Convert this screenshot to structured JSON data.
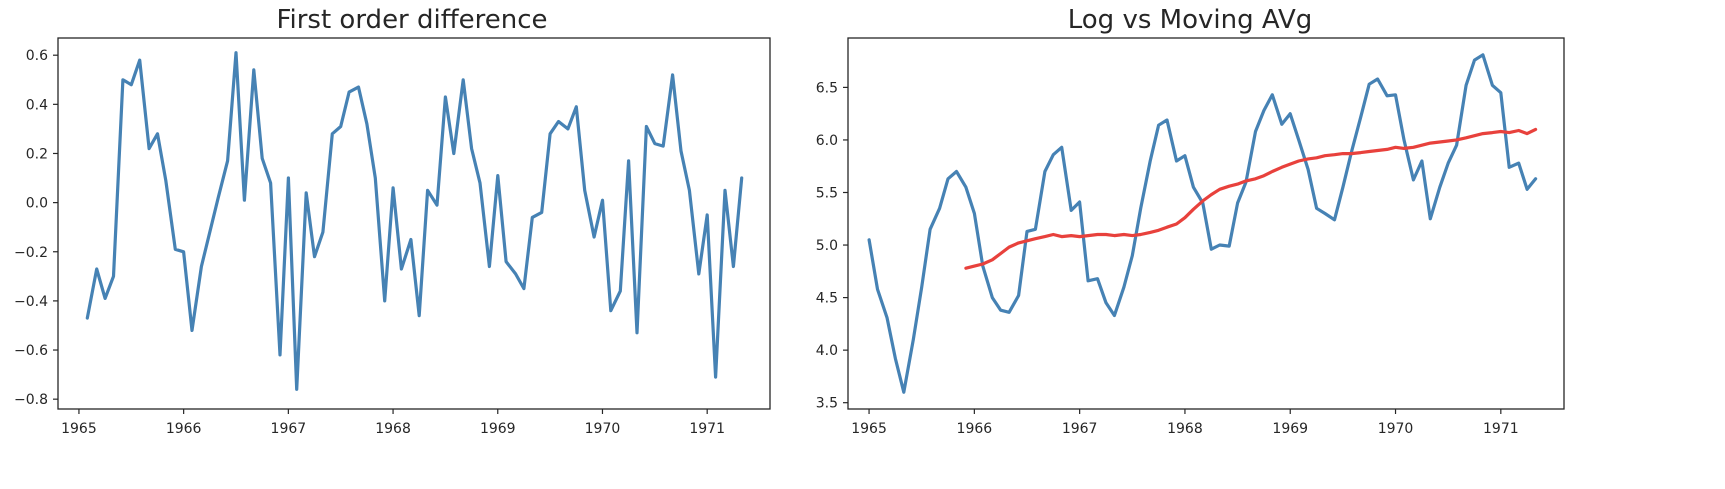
{
  "colors": {
    "series_blue": "#4682b4",
    "series_red": "#e8413c",
    "axis": "#262626"
  },
  "chart_data": [
    {
      "type": "line",
      "title": "First order difference",
      "xlim": [
        1964.8,
        1971.6
      ],
      "ylim": [
        -0.84,
        0.67
      ],
      "xticks": [
        1965,
        1966,
        1967,
        1968,
        1969,
        1970,
        1971
      ],
      "xtick_labels": [
        "1965",
        "1966",
        "1967",
        "1968",
        "1969",
        "1970",
        "1971"
      ],
      "yticks": [
        0.6,
        0.4,
        0.2,
        0.0,
        -0.2,
        -0.4,
        -0.6,
        -0.8
      ],
      "ytick_labels": [
        "0.6",
        "0.4",
        "0.2",
        "0.0",
        "−0.2",
        "−0.4",
        "−0.6",
        "−0.8"
      ],
      "grid": false,
      "series": [
        {
          "color": "#4682b4",
          "x": [
            1965.08,
            1965.17,
            1965.25,
            1965.33,
            1965.42,
            1965.5,
            1965.58,
            1965.67,
            1965.75,
            1965.83,
            1965.92,
            1966.0,
            1966.08,
            1966.17,
            1966.25,
            1966.33,
            1966.42,
            1966.5,
            1966.58,
            1966.67,
            1966.75,
            1966.83,
            1966.92,
            1967.0,
            1967.08,
            1967.17,
            1967.25,
            1967.33,
            1967.42,
            1967.5,
            1967.58,
            1967.67,
            1967.75,
            1967.83,
            1967.92,
            1968.0,
            1968.08,
            1968.17,
            1968.25,
            1968.33,
            1968.42,
            1968.5,
            1968.58,
            1968.67,
            1968.75,
            1968.83,
            1968.92,
            1969.0,
            1969.08,
            1969.17,
            1969.25,
            1969.33,
            1969.42,
            1969.5,
            1969.58,
            1969.67,
            1969.75,
            1969.83,
            1969.92,
            1970.0,
            1970.08,
            1970.17,
            1970.25,
            1970.33,
            1970.42,
            1970.5,
            1970.58,
            1970.67,
            1970.75,
            1970.83,
            1970.92,
            1971.0,
            1971.08,
            1971.17,
            1971.25,
            1971.33
          ],
          "y": [
            -0.47,
            -0.27,
            -0.39,
            -0.3,
            0.5,
            0.48,
            0.58,
            0.22,
            0.28,
            0.09,
            -0.19,
            -0.2,
            -0.52,
            -0.26,
            -0.12,
            0.02,
            0.17,
            0.61,
            0.01,
            0.54,
            0.18,
            0.08,
            -0.62,
            0.1,
            -0.76,
            0.04,
            -0.22,
            -0.12,
            0.28,
            0.31,
            0.45,
            0.47,
            0.32,
            0.1,
            -0.4,
            0.06,
            -0.27,
            -0.15,
            -0.46,
            0.05,
            -0.01,
            0.43,
            0.2,
            0.5,
            0.22,
            0.08,
            -0.26,
            0.11,
            -0.24,
            -0.29,
            -0.35,
            -0.06,
            -0.04,
            0.28,
            0.33,
            0.3,
            0.39,
            0.05,
            -0.14,
            0.01,
            -0.44,
            -0.36,
            0.17,
            -0.53,
            0.31,
            0.24,
            0.23,
            0.52,
            0.21,
            0.05,
            -0.29,
            -0.05,
            -0.71,
            0.05,
            -0.26,
            0.1
          ]
        }
      ]
    },
    {
      "type": "line",
      "title": "Log vs Moving AVg",
      "xlim": [
        1964.8,
        1971.6
      ],
      "ylim": [
        3.44,
        6.97
      ],
      "xticks": [
        1965,
        1966,
        1967,
        1968,
        1969,
        1970,
        1971
      ],
      "xtick_labels": [
        "1965",
        "1966",
        "1967",
        "1968",
        "1969",
        "1970",
        "1971"
      ],
      "yticks": [
        6.5,
        6.0,
        5.5,
        5.0,
        4.5,
        4.0,
        3.5
      ],
      "ytick_labels": [
        "6.5",
        "6.0",
        "5.5",
        "5.0",
        "4.5",
        "4.0",
        "3.5"
      ],
      "grid": false,
      "series": [
        {
          "color": "#4682b4",
          "x": [
            1965.0,
            1965.08,
            1965.17,
            1965.25,
            1965.33,
            1965.42,
            1965.5,
            1965.58,
            1965.67,
            1965.75,
            1965.83,
            1965.92,
            1966.0,
            1966.08,
            1966.17,
            1966.25,
            1966.33,
            1966.42,
            1966.5,
            1966.58,
            1966.67,
            1966.75,
            1966.83,
            1966.92,
            1967.0,
            1967.08,
            1967.17,
            1967.25,
            1967.33,
            1967.42,
            1967.5,
            1967.58,
            1967.67,
            1967.75,
            1967.83,
            1967.92,
            1968.0,
            1968.08,
            1968.17,
            1968.25,
            1968.33,
            1968.42,
            1968.5,
            1968.58,
            1968.67,
            1968.75,
            1968.83,
            1968.92,
            1969.0,
            1969.08,
            1969.17,
            1969.25,
            1969.33,
            1969.42,
            1969.5,
            1969.58,
            1969.67,
            1969.75,
            1969.83,
            1969.92,
            1970.0,
            1970.08,
            1970.17,
            1970.25,
            1970.33,
            1970.42,
            1970.5,
            1970.58,
            1970.67,
            1970.75,
            1970.83,
            1970.92,
            1971.0,
            1971.08,
            1971.17,
            1971.25,
            1971.33
          ],
          "y": [
            5.05,
            4.58,
            4.31,
            3.92,
            3.6,
            4.1,
            4.6,
            5.15,
            5.35,
            5.63,
            5.7,
            5.55,
            5.3,
            4.8,
            4.5,
            4.38,
            4.36,
            4.52,
            5.13,
            5.15,
            5.7,
            5.86,
            5.93,
            5.33,
            5.41,
            4.66,
            4.68,
            4.45,
            4.33,
            4.6,
            4.9,
            5.35,
            5.8,
            6.14,
            6.19,
            5.8,
            5.85,
            5.55,
            5.4,
            4.96,
            5.0,
            4.99,
            5.4,
            5.6,
            6.08,
            6.28,
            6.43,
            6.15,
            6.25,
            6.0,
            5.72,
            5.35,
            5.3,
            5.24,
            5.55,
            5.88,
            6.22,
            6.53,
            6.58,
            6.42,
            6.43,
            6.0,
            5.62,
            5.8,
            5.25,
            5.55,
            5.78,
            5.95,
            6.52,
            6.76,
            6.81,
            6.52,
            6.45,
            5.74,
            5.78,
            5.53,
            5.63
          ]
        },
        {
          "color": "#e8413c",
          "x": [
            1965.92,
            1966.0,
            1966.08,
            1966.17,
            1966.25,
            1966.33,
            1966.42,
            1966.5,
            1966.58,
            1966.67,
            1966.75,
            1966.83,
            1966.92,
            1967.0,
            1967.08,
            1967.17,
            1967.25,
            1967.33,
            1967.42,
            1967.5,
            1967.58,
            1967.67,
            1967.75,
            1967.83,
            1967.92,
            1968.0,
            1968.08,
            1968.17,
            1968.25,
            1968.33,
            1968.42,
            1968.5,
            1968.58,
            1968.67,
            1968.75,
            1968.83,
            1968.92,
            1969.0,
            1969.08,
            1969.17,
            1969.25,
            1969.33,
            1969.42,
            1969.5,
            1969.58,
            1969.67,
            1969.75,
            1969.83,
            1969.92,
            1970.0,
            1970.08,
            1970.17,
            1970.25,
            1970.33,
            1970.42,
            1970.5,
            1970.58,
            1970.67,
            1970.75,
            1970.83,
            1970.92,
            1971.0,
            1971.08,
            1971.17,
            1971.25,
            1971.33
          ],
          "y": [
            4.78,
            4.8,
            4.82,
            4.86,
            4.92,
            4.98,
            5.02,
            5.04,
            5.06,
            5.08,
            5.1,
            5.08,
            5.09,
            5.08,
            5.09,
            5.1,
            5.1,
            5.09,
            5.1,
            5.09,
            5.1,
            5.12,
            5.14,
            5.17,
            5.2,
            5.26,
            5.34,
            5.42,
            5.48,
            5.53,
            5.56,
            5.58,
            5.61,
            5.63,
            5.66,
            5.7,
            5.74,
            5.77,
            5.8,
            5.82,
            5.83,
            5.85,
            5.86,
            5.87,
            5.87,
            5.88,
            5.89,
            5.9,
            5.91,
            5.93,
            5.92,
            5.93,
            5.95,
            5.97,
            5.98,
            5.99,
            6.0,
            6.02,
            6.04,
            6.06,
            6.07,
            6.08,
            6.07,
            6.09,
            6.06,
            6.1
          ]
        }
      ]
    }
  ]
}
